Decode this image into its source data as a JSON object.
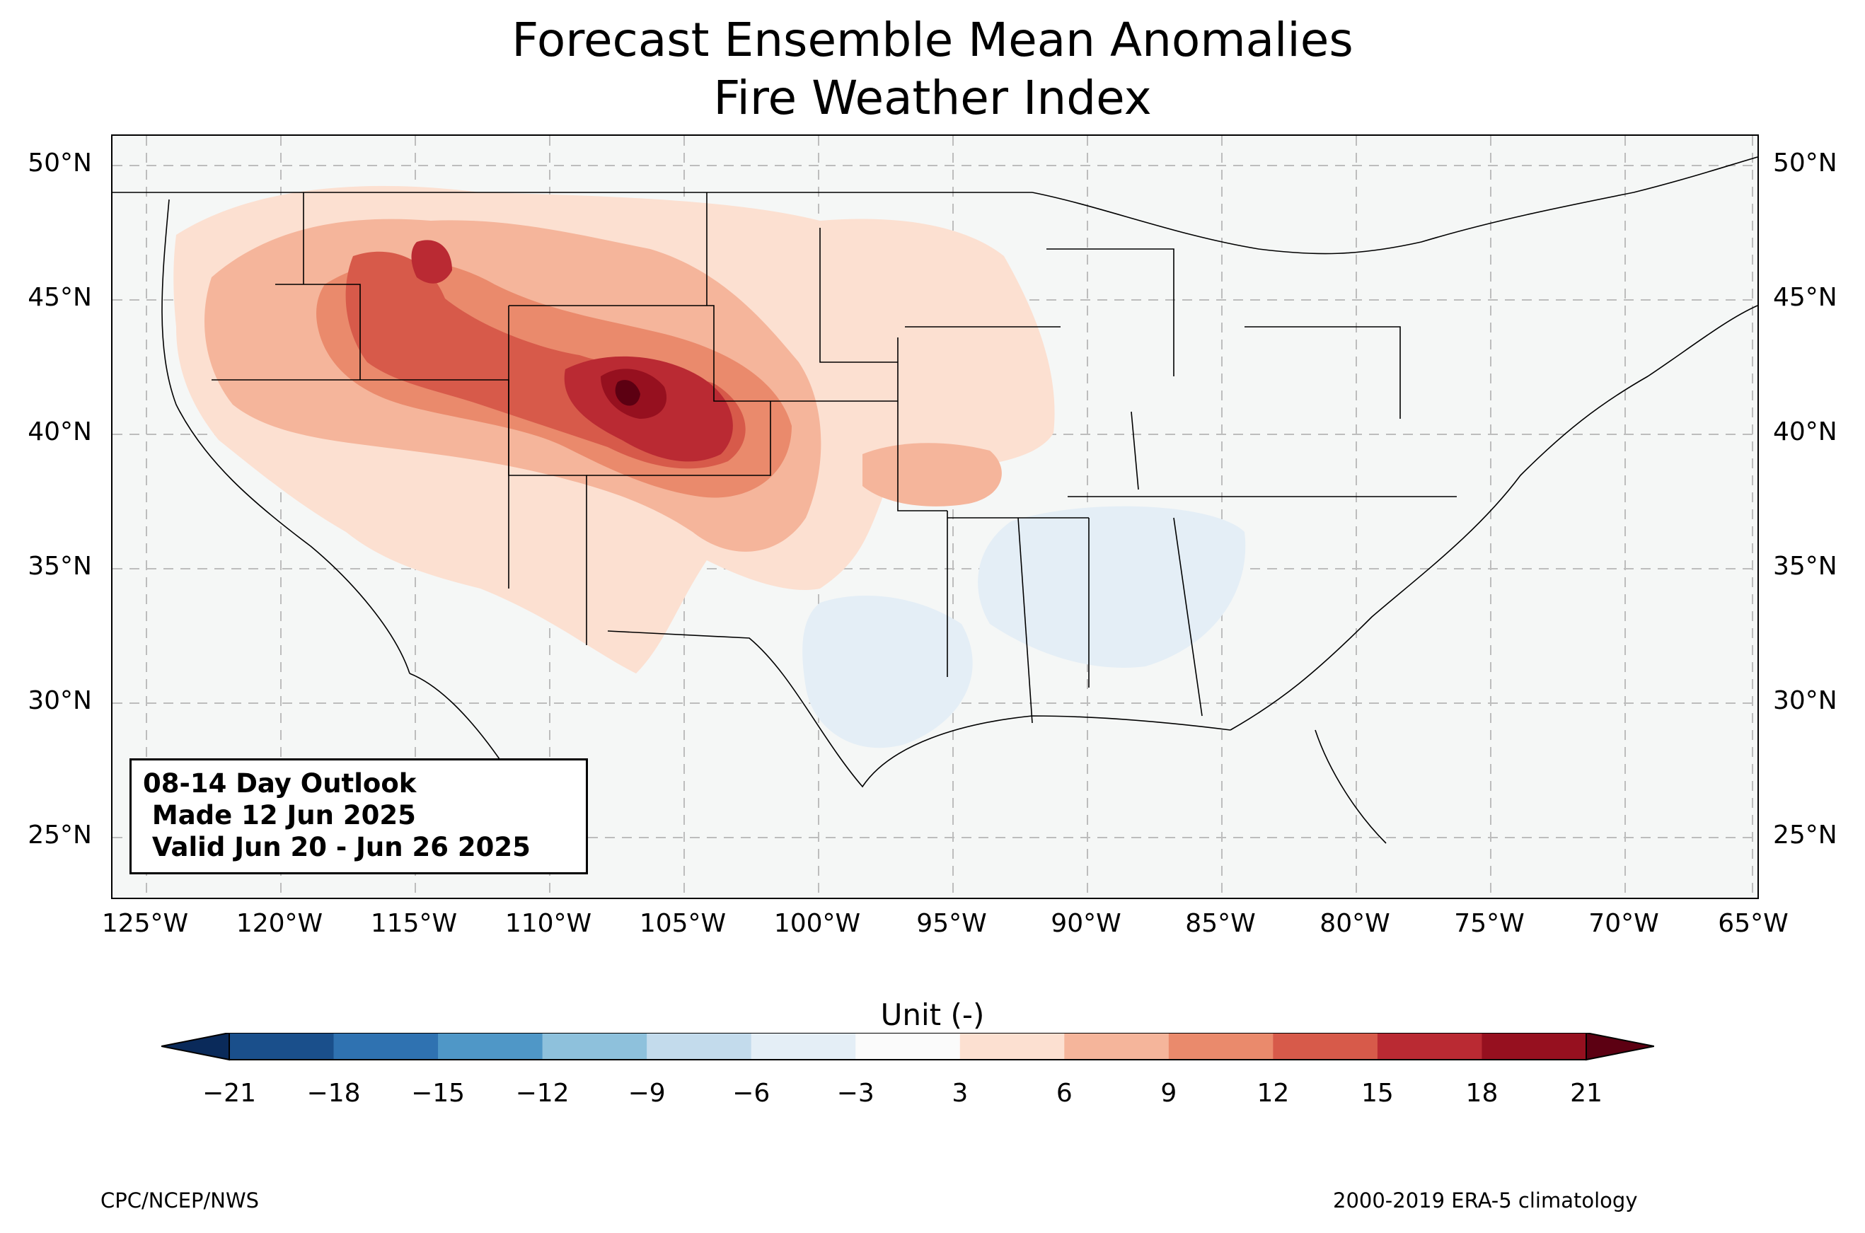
{
  "title_line1": "Forecast Ensemble Mean Anomalies",
  "title_line2": "Fire Weather Index",
  "lat_labels": [
    "50°N",
    "45°N",
    "40°N",
    "35°N",
    "30°N",
    "25°N"
  ],
  "lon_labels": [
    "125°W",
    "120°W",
    "115°W",
    "110°W",
    "105°W",
    "100°W",
    "95°W",
    "90°W",
    "85°W",
    "80°W",
    "75°W",
    "70°W",
    "65°W"
  ],
  "outlook": {
    "line1": "08-14 Day Outlook",
    "line2": " Made 12 Jun 2025",
    "line3": " Valid Jun 20 - Jun 26 2025"
  },
  "colorbar": {
    "title": "Unit (-)",
    "ticks": [
      "−21",
      "−18",
      "−15",
      "−12",
      "−9",
      "−6",
      "−3",
      "3",
      "6",
      "9",
      "12",
      "15",
      "18",
      "21"
    ],
    "colors": [
      "#1a4f8b",
      "#2f72b1",
      "#4f97c7",
      "#8ec1dc",
      "#c3dbec",
      "#e4eef6",
      "#fbfbfb",
      "#fce0d1",
      "#f5b59b",
      "#ea8a6c",
      "#d75a4a",
      "#ba2a33",
      "#96101f"
    ],
    "under_color": "#0a2a5a",
    "over_color": "#5c0012"
  },
  "footer_left": "CPC/NCEP/NWS",
  "footer_right": "2000-2019 ERA-5 climatology",
  "map_colors": {
    "background": "#f5f7f6",
    "outside": "#ffffff"
  }
}
